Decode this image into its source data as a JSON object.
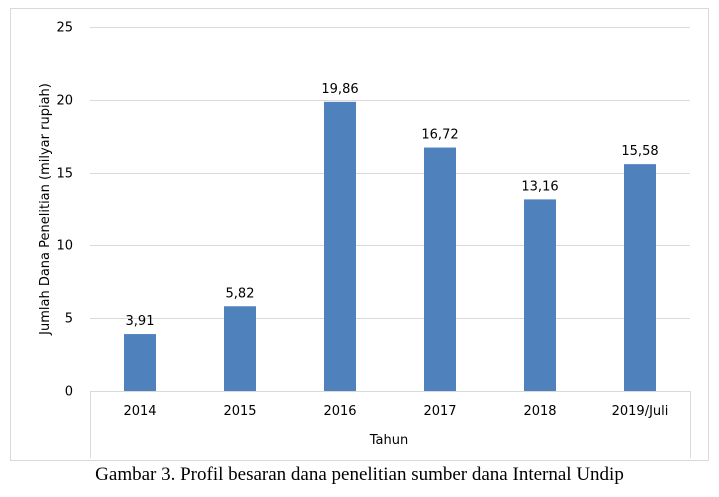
{
  "chart_data": {
    "type": "bar",
    "categories": [
      "2014",
      "2015",
      "2016",
      "2017",
      "2018",
      "2019/Juli"
    ],
    "values": [
      3.91,
      5.82,
      19.86,
      16.72,
      13.16,
      15.58
    ],
    "value_labels": [
      "3,91",
      "5,82",
      "19,86",
      "16,72",
      "13,16",
      "15,58"
    ],
    "title": "",
    "xlabel": "Tahun",
    "ylabel": "Jumlah Dana Penelitian (milyar rupiah)",
    "ylim": [
      0,
      25
    ],
    "yticks": [
      0,
      5,
      10,
      15,
      20,
      25
    ],
    "grid": true,
    "legend": "none",
    "bar_color": "#4f81bd"
  },
  "caption": "Gambar 3. Profil besaran dana penelitian sumber dana Internal Undip"
}
